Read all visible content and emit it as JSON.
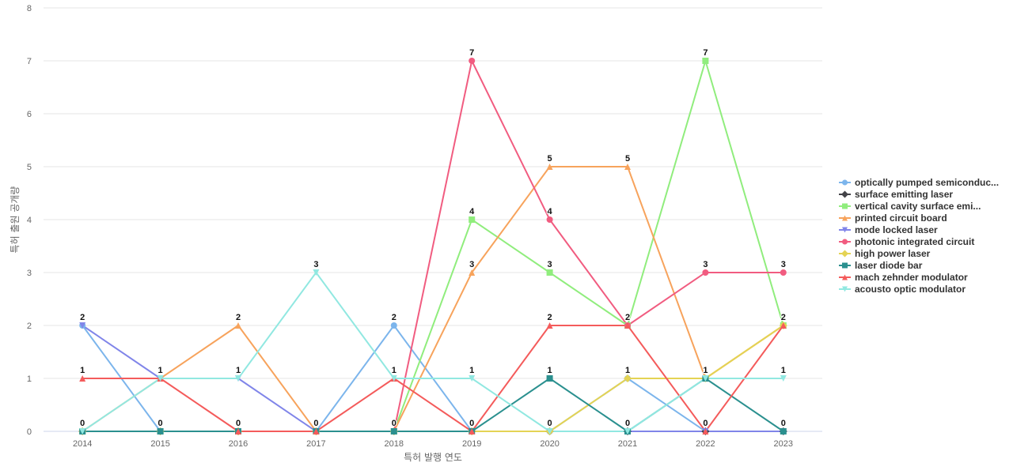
{
  "chart_data": {
    "type": "line",
    "title": "",
    "xlabel": "특허 발행 연도",
    "ylabel": "특허 출원 공개량",
    "categories": [
      "2014",
      "2015",
      "2016",
      "2017",
      "2018",
      "2019",
      "2020",
      "2021",
      "2022",
      "2023"
    ],
    "ylim": [
      0,
      8
    ],
    "yticks": [
      0,
      1,
      2,
      3,
      4,
      5,
      6,
      7,
      8
    ],
    "grid": true,
    "legend_position": "right",
    "series": [
      {
        "name": "optically pumped semiconduc...",
        "color": "#7cb5ec",
        "marker": "circle",
        "values": [
          2,
          0,
          0,
          0,
          2,
          0,
          0,
          1,
          0,
          0
        ]
      },
      {
        "name": "surface emitting laser",
        "color": "#434348",
        "marker": "diamond",
        "values": [
          0,
          0,
          0,
          0,
          0,
          0,
          0,
          0,
          0,
          0
        ]
      },
      {
        "name": "vertical cavity surface emi...",
        "color": "#90ed7d",
        "marker": "square",
        "values": [
          0,
          0,
          0,
          0,
          0,
          4,
          3,
          2,
          7,
          2
        ]
      },
      {
        "name": "printed circuit board",
        "color": "#f7a35c",
        "marker": "triangle",
        "values": [
          0,
          1,
          2,
          0,
          0,
          3,
          5,
          5,
          1,
          2
        ]
      },
      {
        "name": "mode locked laser",
        "color": "#8085e9",
        "marker": "triangle-down",
        "values": [
          2,
          1,
          1,
          0,
          0,
          0,
          0,
          0,
          0,
          0
        ]
      },
      {
        "name": "photonic integrated circuit",
        "color": "#f15c80",
        "marker": "circle",
        "values": [
          0,
          0,
          0,
          0,
          0,
          7,
          4,
          2,
          3,
          3
        ]
      },
      {
        "name": "high power laser",
        "color": "#e4d354",
        "marker": "diamond",
        "values": [
          0,
          0,
          0,
          0,
          0,
          0,
          0,
          1,
          1,
          2
        ]
      },
      {
        "name": "laser diode bar",
        "color": "#2b908f",
        "marker": "square",
        "values": [
          0,
          0,
          0,
          0,
          0,
          0,
          1,
          0,
          1,
          0
        ]
      },
      {
        "name": "mach zehnder modulator",
        "color": "#f45b5b",
        "marker": "triangle",
        "values": [
          1,
          1,
          0,
          0,
          1,
          0,
          2,
          2,
          0,
          2
        ]
      },
      {
        "name": "acousto optic modulator",
        "color": "#91e8e1",
        "marker": "triangle-down",
        "values": [
          0,
          1,
          1,
          3,
          1,
          1,
          0,
          0,
          1,
          1
        ]
      }
    ],
    "data_labels": [
      {
        "x": "2014",
        "text": "2",
        "value": 2
      },
      {
        "x": "2014",
        "text": "1",
        "value": 1
      },
      {
        "x": "2014",
        "text": "0",
        "value": 0
      },
      {
        "x": "2015",
        "text": "1",
        "value": 1
      },
      {
        "x": "2015",
        "text": "0",
        "value": 0
      },
      {
        "x": "2016",
        "text": "2",
        "value": 2
      },
      {
        "x": "2016",
        "text": "1",
        "value": 1
      },
      {
        "x": "2016",
        "text": "0",
        "value": 0
      },
      {
        "x": "2017",
        "text": "3",
        "value": 3
      },
      {
        "x": "2017",
        "text": "0",
        "value": 0
      },
      {
        "x": "2018",
        "text": "2",
        "value": 2
      },
      {
        "x": "2018",
        "text": "1",
        "value": 1
      },
      {
        "x": "2018",
        "text": "0",
        "value": 0
      },
      {
        "x": "2019",
        "text": "7",
        "value": 7
      },
      {
        "x": "2019",
        "text": "4",
        "value": 4
      },
      {
        "x": "2019",
        "text": "3",
        "value": 3
      },
      {
        "x": "2019",
        "text": "1",
        "value": 1
      },
      {
        "x": "2019",
        "text": "0",
        "value": 0
      },
      {
        "x": "2020",
        "text": "5",
        "value": 5
      },
      {
        "x": "2020",
        "text": "4",
        "value": 4
      },
      {
        "x": "2020",
        "text": "3",
        "value": 3
      },
      {
        "x": "2020",
        "text": "2",
        "value": 2
      },
      {
        "x": "2020",
        "text": "1",
        "value": 1
      },
      {
        "x": "2020",
        "text": "0",
        "value": 0
      },
      {
        "x": "2021",
        "text": "5",
        "value": 5
      },
      {
        "x": "2021",
        "text": "2",
        "value": 2
      },
      {
        "x": "2021",
        "text": "1",
        "value": 1
      },
      {
        "x": "2021",
        "text": "0",
        "value": 0
      },
      {
        "x": "2022",
        "text": "7",
        "value": 7
      },
      {
        "x": "2022",
        "text": "3",
        "value": 3
      },
      {
        "x": "2022",
        "text": "1",
        "value": 1
      },
      {
        "x": "2022",
        "text": "0",
        "value": 0
      },
      {
        "x": "2023",
        "text": "3",
        "value": 3
      },
      {
        "x": "2023",
        "text": "2",
        "value": 2
      },
      {
        "x": "2023",
        "text": "1",
        "value": 1
      },
      {
        "x": "2023",
        "text": "0",
        "value": 0
      }
    ]
  }
}
